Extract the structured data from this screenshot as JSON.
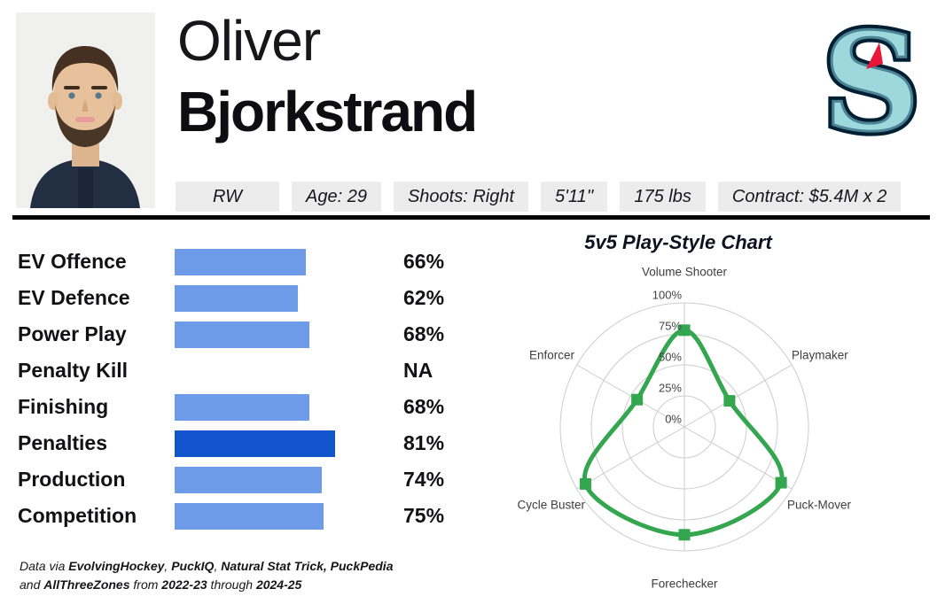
{
  "player": {
    "first_name": "Oliver",
    "last_name": "Bjorkstrand"
  },
  "team": {
    "name": "Seattle Kraken",
    "logo_icon": "kraken-s-icon",
    "logo_colors": {
      "navy": "#001f33",
      "ice_blue": "#9cd8dc",
      "teal_stripe": "#4e8396",
      "red_eye": "#e8173a"
    }
  },
  "info_badges": [
    "RW",
    "Age: 29",
    "Shoots: Right",
    "5'11''",
    "175 lbs",
    "Contract: $5.4M x 2"
  ],
  "footer": {
    "lines": [
      {
        "segments": [
          {
            "text": "Data via ",
            "bold": false
          },
          {
            "text": "EvolvingHockey",
            "bold": true
          },
          {
            "text": ", ",
            "bold": false
          },
          {
            "text": "PuckIQ",
            "bold": true
          },
          {
            "text": ", ",
            "bold": false
          },
          {
            "text": "Natural Stat Trick, PuckPedia",
            "bold": true
          }
        ]
      },
      {
        "segments": [
          {
            "text": "and ",
            "bold": false
          },
          {
            "text": "AllThreeZones",
            "bold": true
          },
          {
            "text": " from ",
            "bold": false
          },
          {
            "text": "2022-23",
            "bold": true
          },
          {
            "text": " through ",
            "bold": false
          },
          {
            "text": "2024-25",
            "bold": true
          }
        ]
      }
    ]
  },
  "colors": {
    "bar_blue": "#6d9be8",
    "bar_highlight_blue": "#1254cb",
    "radar_green": "#34a64f",
    "grid_gray": "#cccccc",
    "badge_gray": "#ececec",
    "text_black": "#121216"
  },
  "chart_data": [
    {
      "type": "bar",
      "orientation": "horizontal",
      "title": "",
      "categories": [
        "EV Offence",
        "EV Defence",
        "Power Play",
        "Penalty Kill",
        "Finishing",
        "Penalties",
        "Production",
        "Competition"
      ],
      "values": [
        66,
        62,
        68,
        null,
        68,
        81,
        74,
        75
      ],
      "value_labels": [
        "66%",
        "62%",
        "68%",
        "NA",
        "68%",
        "81%",
        "74%",
        "75%"
      ],
      "highlight_category": "Penalties",
      "xlim": [
        0,
        100
      ],
      "grid": false,
      "bar_color": "#6d9be8",
      "highlight_color": "#1254cb"
    },
    {
      "type": "radar",
      "title": "5v5 Play-Style Chart",
      "categories": [
        "Volume Shooter",
        "Playmaker",
        "Puck-Mover",
        "Forechecker",
        "Cycle Buster",
        "Enforcer"
      ],
      "values": [
        78,
        42,
        90,
        87,
        92,
        44
      ],
      "rlim": [
        0,
        100
      ],
      "radial_ticks": [
        0,
        25,
        50,
        75,
        100
      ],
      "tick_labels": [
        "0%",
        "25%",
        "50%",
        "75%",
        "100%"
      ],
      "grid": true,
      "line_color": "#34a64f",
      "marker": "square"
    }
  ]
}
